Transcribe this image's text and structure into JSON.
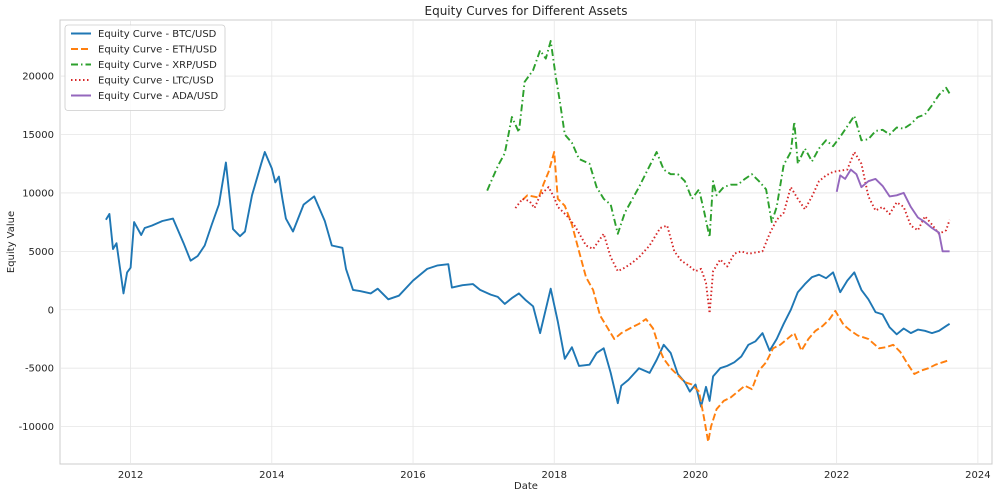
{
  "chart_data": {
    "type": "line",
    "title": "Equity Curves for Different Assets",
    "xlabel": "Date",
    "ylabel": "Equity Value",
    "xlim": [
      2011.0,
      2024.2
    ],
    "ylim": [
      -13200,
      24800
    ],
    "x_ticks": [
      2012,
      2014,
      2016,
      2018,
      2020,
      2022,
      2024
    ],
    "y_ticks": [
      -10000,
      -5000,
      0,
      5000,
      10000,
      15000,
      20000
    ],
    "grid": true,
    "legend_position": "top-left",
    "series": [
      {
        "name": "Equity Curve - BTC/USD",
        "color": "#1f77b4",
        "dash": "solid",
        "x": [
          2011.65,
          2011.7,
          2011.75,
          2011.8,
          2011.9,
          2011.95,
          2012.0,
          2012.05,
          2012.15,
          2012.2,
          2012.3,
          2012.45,
          2012.6,
          2012.75,
          2012.85,
          2012.95,
          2013.05,
          2013.15,
          2013.25,
          2013.35,
          2013.45,
          2013.55,
          2013.62,
          2013.72,
          2013.85,
          2013.9,
          2013.95,
          2014.0,
          2014.05,
          2014.1,
          2014.15,
          2014.2,
          2014.3,
          2014.45,
          2014.6,
          2014.75,
          2014.85,
          2015.0,
          2015.05,
          2015.15,
          2015.25,
          2015.4,
          2015.5,
          2015.65,
          2015.8,
          2016.0,
          2016.2,
          2016.35,
          2016.5,
          2016.55,
          2016.7,
          2016.85,
          2016.95,
          2017.1,
          2017.2,
          2017.3,
          2017.4,
          2017.5,
          2017.6,
          2017.7,
          2017.8,
          2017.95,
          2018.05,
          2018.15,
          2018.25,
          2018.35,
          2018.5,
          2018.6,
          2018.7,
          2018.8,
          2018.9,
          2018.95,
          2019.05,
          2019.2,
          2019.35,
          2019.45,
          2019.55,
          2019.65,
          2019.75,
          2019.85,
          2019.92,
          2020.0,
          2020.08,
          2020.15,
          2020.2,
          2020.25,
          2020.35,
          2020.45,
          2020.55,
          2020.65,
          2020.75,
          2020.85,
          2020.95,
          2021.05,
          2021.15,
          2021.25,
          2021.35,
          2021.45,
          2021.55,
          2021.65,
          2021.75,
          2021.85,
          2021.95,
          2022.05,
          2022.15,
          2022.25,
          2022.35,
          2022.45,
          2022.55,
          2022.65,
          2022.75,
          2022.85,
          2022.95,
          2023.05,
          2023.15,
          2023.25,
          2023.35,
          2023.45,
          2023.55,
          2023.6
        ],
        "values": [
          7700,
          8200,
          5200,
          5700,
          1400,
          3200,
          3600,
          7500,
          6400,
          7000,
          7200,
          7600,
          7800,
          5700,
          4200,
          4600,
          5500,
          7300,
          9000,
          12600,
          6900,
          6300,
          6700,
          9800,
          12500,
          13500,
          12800,
          12100,
          10900,
          11400,
          9500,
          7800,
          6700,
          9000,
          9700,
          7600,
          5500,
          5300,
          3500,
          1700,
          1600,
          1400,
          1800,
          900,
          1200,
          2500,
          3500,
          3800,
          3900,
          1900,
          2100,
          2200,
          1700,
          1300,
          1100,
          500,
          1000,
          1400,
          800,
          300,
          -2000,
          1800,
          -1000,
          -4200,
          -3200,
          -4800,
          -4700,
          -3700,
          -3300,
          -5400,
          -8000,
          -6500,
          -6000,
          -5000,
          -5400,
          -4300,
          -3000,
          -3700,
          -5500,
          -6200,
          -7000,
          -6400,
          -8300,
          -6600,
          -7800,
          -5700,
          -5000,
          -4800,
          -4500,
          -4000,
          -3000,
          -2700,
          -2000,
          -3500,
          -2500,
          -1200,
          0,
          1500,
          2200,
          2800,
          3000,
          2700,
          3200,
          1500,
          2500,
          3200,
          1700,
          900,
          -200,
          -400,
          -1500,
          -2100,
          -1600,
          -2000,
          -1700,
          -1800,
          -2000,
          -1800,
          -1400,
          -1200
        ]
      },
      {
        "name": "Equity Curve - ETH/USD",
        "color": "#ff7f0e",
        "dash": "dashed",
        "x": [
          2017.55,
          2017.62,
          2017.7,
          2017.78,
          2017.85,
          2017.92,
          2018.0,
          2018.05,
          2018.15,
          2018.25,
          2018.35,
          2018.45,
          2018.55,
          2018.65,
          2018.75,
          2018.85,
          2018.95,
          2019.1,
          2019.2,
          2019.3,
          2019.4,
          2019.5,
          2019.55,
          2019.65,
          2019.75,
          2019.85,
          2019.95,
          2020.05,
          2020.12,
          2020.18,
          2020.22,
          2020.3,
          2020.4,
          2020.5,
          2020.6,
          2020.7,
          2020.8,
          2020.9,
          2021.0,
          2021.1,
          2021.2,
          2021.3,
          2021.4,
          2021.5,
          2021.6,
          2021.7,
          2021.8,
          2021.9,
          2021.98,
          2022.1,
          2022.2,
          2022.3,
          2022.45,
          2022.6,
          2022.7,
          2022.8,
          2022.9,
          2023.0,
          2023.1,
          2023.2,
          2023.3,
          2023.4,
          2023.5,
          2023.6
        ],
        "values": [
          9400,
          9800,
          9700,
          9600,
          10800,
          11800,
          13500,
          9500,
          8900,
          7300,
          5000,
          2800,
          1700,
          -500,
          -1500,
          -2500,
          -2000,
          -1500,
          -1200,
          -800,
          -1600,
          -3500,
          -4200,
          -5000,
          -5600,
          -6200,
          -6400,
          -7000,
          -9200,
          -11300,
          -10000,
          -8500,
          -7800,
          -7500,
          -7000,
          -6500,
          -6800,
          -5200,
          -4500,
          -3300,
          -3000,
          -2500,
          -2000,
          -3500,
          -2500,
          -1800,
          -1400,
          -800,
          -100,
          -1300,
          -1800,
          -2200,
          -2500,
          -3300,
          -3200,
          -3000,
          -3600,
          -4600,
          -5500,
          -5200,
          -5000,
          -4700,
          -4500,
          -4300
        ]
      },
      {
        "name": "Equity Curve - XRP/USD",
        "color": "#2ca02c",
        "dash": "dashdot",
        "x": [
          2017.05,
          2017.1,
          2017.2,
          2017.3,
          2017.4,
          2017.5,
          2017.58,
          2017.7,
          2017.8,
          2017.88,
          2017.95,
          2018.02,
          2018.08,
          2018.15,
          2018.25,
          2018.35,
          2018.5,
          2018.6,
          2018.7,
          2018.8,
          2018.9,
          2019.0,
          2019.1,
          2019.2,
          2019.3,
          2019.45,
          2019.55,
          2019.65,
          2019.75,
          2019.85,
          2019.95,
          2020.05,
          2020.12,
          2020.2,
          2020.25,
          2020.3,
          2020.4,
          2020.5,
          2020.6,
          2020.7,
          2020.8,
          2020.9,
          2021.0,
          2021.08,
          2021.15,
          2021.25,
          2021.35,
          2021.4,
          2021.45,
          2021.55,
          2021.65,
          2021.75,
          2021.85,
          2021.95,
          2022.05,
          2022.15,
          2022.25,
          2022.35,
          2022.45,
          2022.55,
          2022.65,
          2022.75,
          2022.85,
          2022.95,
          2023.05,
          2023.15,
          2023.25,
          2023.35,
          2023.45,
          2023.55,
          2023.6
        ],
        "values": [
          10200,
          10900,
          12300,
          13400,
          16500,
          15200,
          19500,
          20500,
          22200,
          21500,
          23000,
          20000,
          17800,
          15000,
          14300,
          12900,
          12500,
          10500,
          9500,
          9000,
          6500,
          8300,
          9400,
          10500,
          11700,
          13500,
          12000,
          11600,
          11600,
          11000,
          9500,
          10300,
          8500,
          6200,
          11000,
          9800,
          10500,
          10700,
          10700,
          11200,
          11600,
          11000,
          10300,
          7500,
          8800,
          12400,
          13500,
          16100,
          12500,
          13800,
          12700,
          13800,
          14500,
          14000,
          14800,
          15700,
          16600,
          14500,
          14600,
          15300,
          15400,
          15000,
          15600,
          15500,
          15900,
          16500,
          16700,
          17500,
          18400,
          19000,
          18500
        ]
      },
      {
        "name": "Equity Curve - LTC/USD",
        "color": "#d62728",
        "dash": "dotted",
        "x": [
          2017.45,
          2017.55,
          2017.65,
          2017.72,
          2017.8,
          2017.85,
          2017.92,
          2018.0,
          2018.05,
          2018.12,
          2018.2,
          2018.3,
          2018.45,
          2018.55,
          2018.7,
          2018.8,
          2018.9,
          2019.0,
          2019.1,
          2019.2,
          2019.35,
          2019.5,
          2019.6,
          2019.7,
          2019.8,
          2019.9,
          2020.0,
          2020.08,
          2020.15,
          2020.2,
          2020.25,
          2020.35,
          2020.45,
          2020.55,
          2020.65,
          2020.75,
          2020.85,
          2020.95,
          2021.05,
          2021.15,
          2021.25,
          2021.35,
          2021.45,
          2021.55,
          2021.65,
          2021.75,
          2021.85,
          2021.95,
          2022.05,
          2022.15,
          2022.25,
          2022.35,
          2022.45,
          2022.55,
          2022.65,
          2022.75,
          2022.85,
          2022.95,
          2023.05,
          2023.15,
          2023.25,
          2023.35,
          2023.45,
          2023.55,
          2023.6
        ],
        "values": [
          8700,
          9500,
          9300,
          8700,
          9800,
          10100,
          10500,
          9600,
          8800,
          8400,
          7900,
          7100,
          5500,
          5200,
          6500,
          4500,
          3300,
          3600,
          4000,
          4500,
          5500,
          7000,
          7200,
          5000,
          4200,
          3800,
          3300,
          3500,
          2300,
          -300,
          3300,
          4300,
          3700,
          4800,
          5000,
          4800,
          4900,
          5000,
          6500,
          7700,
          8300,
          10500,
          9500,
          8600,
          9700,
          11000,
          11500,
          11800,
          11900,
          12000,
          13500,
          12500,
          9700,
          8500,
          8800,
          8200,
          9200,
          8800,
          7200,
          6800,
          8000,
          7300,
          6500,
          6800,
          7700
        ]
      },
      {
        "name": "Equity Curve - ADA/USD",
        "color": "#9467bd",
        "dash": "solid",
        "x": [
          2022.0,
          2022.05,
          2022.12,
          2022.2,
          2022.28,
          2022.35,
          2022.45,
          2022.55,
          2022.65,
          2022.75,
          2022.85,
          2022.95,
          2023.05,
          2023.15,
          2023.25,
          2023.35,
          2023.45,
          2023.5,
          2023.55,
          2023.6
        ],
        "values": [
          10100,
          11500,
          11200,
          12000,
          11600,
          10500,
          11000,
          11200,
          10600,
          9700,
          9800,
          10000,
          8800,
          7900,
          7500,
          7000,
          6600,
          5000,
          5000,
          5000
        ]
      }
    ]
  }
}
